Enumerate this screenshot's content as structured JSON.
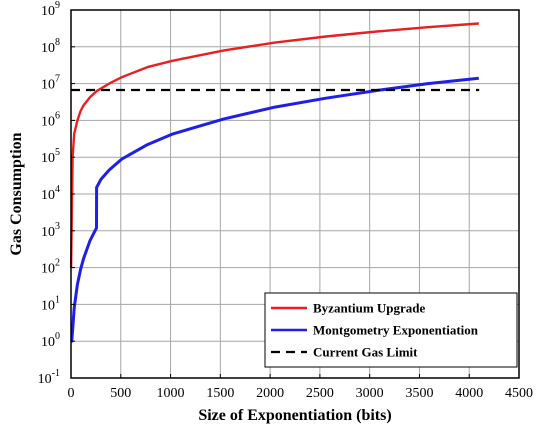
{
  "chart_data": {
    "type": "line",
    "xlabel": "Size of Exponentiation (bits)",
    "ylabel": "Gas Consumption",
    "x_ticks": [
      "0",
      "500",
      "1000",
      "1500",
      "2000",
      "2500",
      "3000",
      "3500",
      "4000",
      "4500"
    ],
    "y_ticks": [
      {
        "base": "10",
        "exp": "-1"
      },
      {
        "base": "10",
        "exp": "0"
      },
      {
        "base": "10",
        "exp": "1"
      },
      {
        "base": "10",
        "exp": "2"
      },
      {
        "base": "10",
        "exp": "3"
      },
      {
        "base": "10",
        "exp": "4"
      },
      {
        "base": "10",
        "exp": "5"
      },
      {
        "base": "10",
        "exp": "6"
      },
      {
        "base": "10",
        "exp": "7"
      },
      {
        "base": "10",
        "exp": "8"
      },
      {
        "base": "10",
        "exp": "9"
      }
    ],
    "xlim": [
      0,
      4500
    ],
    "ylim": [
      0.1,
      1000000000
    ],
    "yscale": "log",
    "grid": true,
    "legend_position": "bottom-right",
    "series": [
      {
        "name": "Byzantium Upgrade",
        "color": "#e8201f",
        "style": "solid",
        "x": [
          1,
          16,
          32,
          64,
          96,
          128,
          192,
          256,
          384,
          512,
          768,
          1024,
          1536,
          2048,
          2560,
          3072,
          3584,
          4096
        ],
        "y": [
          100,
          100000,
          430000,
          1000000,
          1800000,
          2600000,
          4300000,
          6200000,
          10000000,
          15000000,
          28000000,
          42000000,
          80000000,
          130000000,
          190000000,
          260000000,
          340000000,
          430000000
        ]
      },
      {
        "name": "Montgometry Exponentiation",
        "color": "#1f1fe8",
        "style": "solid",
        "x": [
          1,
          8,
          16,
          32,
          64,
          96,
          128,
          192,
          256,
          257,
          300,
          384,
          512,
          768,
          1024,
          1536,
          2048,
          2560,
          3072,
          3584,
          4096
        ],
        "y": [
          1,
          1,
          2,
          8,
          35,
          90,
          180,
          550,
          1200,
          15000,
          25000,
          45000,
          90000,
          220000,
          430000,
          1100000,
          2300000,
          4000000,
          6500000,
          10000000,
          14000000
        ]
      },
      {
        "name": "Current Gas Limit",
        "color": "#000000",
        "style": "dashed",
        "x": [
          0,
          4100
        ],
        "y": [
          6700000,
          6700000
        ]
      }
    ]
  }
}
